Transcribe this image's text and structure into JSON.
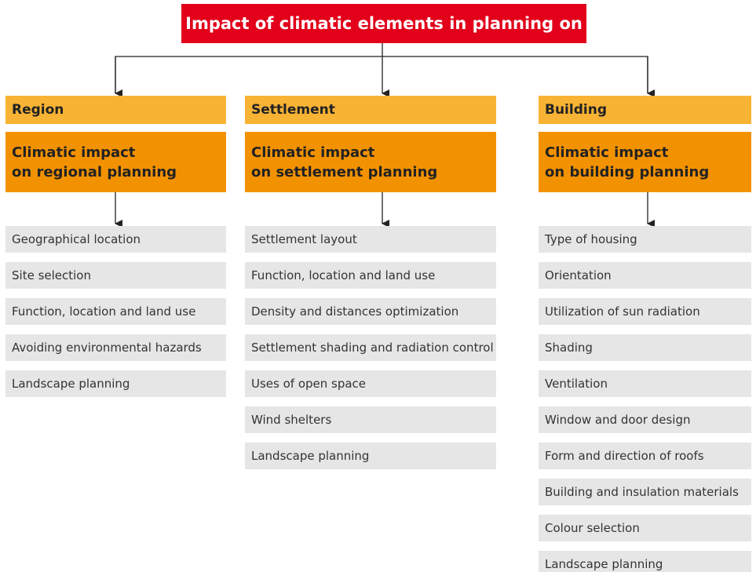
{
  "title": "Impact of climatic elements in planning on",
  "columns": [
    {
      "heading": "Region",
      "subheading": [
        "Climatic impact",
        "on regional planning"
      ],
      "items": [
        "Geographical location",
        "Site selection",
        "Function, location and land use",
        "Avoiding environmental hazards",
        "Landscape planning"
      ]
    },
    {
      "heading": "Settlement",
      "subheading": [
        "Climatic impact",
        "on settlement planning"
      ],
      "items": [
        "Settlement layout",
        "Function, location and land use",
        "Density and distances optimization",
        "Settlement shading and radiation control",
        "Uses of open space",
        "Wind shelters",
        "Landscape planning"
      ]
    },
    {
      "heading": "Building",
      "subheading": [
        "Climatic impact",
        "on building planning"
      ],
      "items": [
        "Type of housing",
        "Orientation",
        "Utilization of sun radiation",
        "Shading",
        "Ventilation",
        "Window and door design",
        "Form and direction of roofs",
        "Building and insulation materials",
        "Colour selection",
        "Landscape planning"
      ]
    }
  ]
}
